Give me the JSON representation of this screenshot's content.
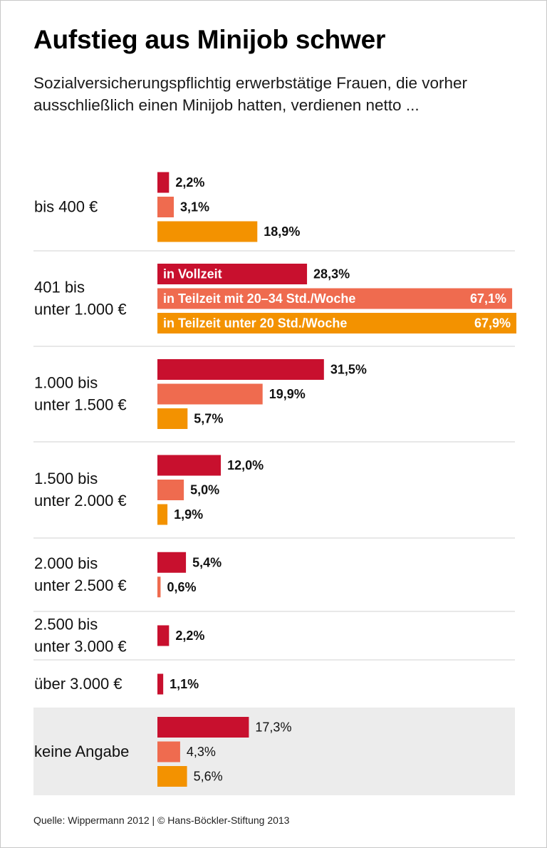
{
  "title": "Aufstieg aus Minijob schwer",
  "subtitle": "Sozialversicherungspflichtig erwerbstätige Frauen, die vorher ausschließlich einen Minijob hatten, verdienen netto ...",
  "source": "Quelle: Wippermann 2012 | © Hans-Böckler-Stiftung 2013",
  "colors": {
    "vollzeit": "#c8102e",
    "teilzeit_20_34": "#ef6b4f",
    "teilzeit_unter_20": "#f39200",
    "shade": "#ececec",
    "divider": "#d2d2d2"
  },
  "chart_data": {
    "type": "bar",
    "orientation": "horizontal",
    "title": "Aufstieg aus Minijob schwer",
    "xlim": [
      0,
      67.9
    ],
    "legend_placement": "inside-bars (category 401 bis unter 1.000 €)",
    "series": [
      {
        "name": "in Vollzeit",
        "color": "#c8102e"
      },
      {
        "name": "in Teilzeit mit 20–34 Std./Woche",
        "color": "#ef6b4f"
      },
      {
        "name": "in Teilzeit unter 20 Std./Woche",
        "color": "#f39200"
      }
    ],
    "categories": [
      {
        "label": [
          "bis 400 €"
        ],
        "bars": [
          {
            "series": 0,
            "value": 2.2,
            "label": "2,2%"
          },
          {
            "series": 1,
            "value": 3.1,
            "label": "3,1%"
          },
          {
            "series": 2,
            "value": 18.9,
            "label": "18,9%"
          }
        ]
      },
      {
        "label": [
          "401 bis",
          "unter 1.000 €"
        ],
        "legend": true,
        "bars": [
          {
            "series": 0,
            "value": 28.3,
            "label": "28,3%"
          },
          {
            "series": 1,
            "value": 67.1,
            "label": "67,1%"
          },
          {
            "series": 2,
            "value": 67.9,
            "label": "67,9%"
          }
        ]
      },
      {
        "label": [
          "1.000 bis",
          "unter 1.500 €"
        ],
        "bars": [
          {
            "series": 0,
            "value": 31.5,
            "label": "31,5%"
          },
          {
            "series": 1,
            "value": 19.9,
            "label": "19,9%"
          },
          {
            "series": 2,
            "value": 5.7,
            "label": "5,7%"
          }
        ]
      },
      {
        "label": [
          "1.500 bis",
          "unter 2.000 €"
        ],
        "bars": [
          {
            "series": 0,
            "value": 12.0,
            "label": "12,0%"
          },
          {
            "series": 1,
            "value": 5.0,
            "label": "5,0%"
          },
          {
            "series": 2,
            "value": 1.9,
            "label": "1,9%"
          }
        ]
      },
      {
        "label": [
          "2.000 bis",
          "unter 2.500 €"
        ],
        "bars": [
          {
            "series": 0,
            "value": 5.4,
            "label": "5,4%"
          },
          {
            "series": 1,
            "value": 0.6,
            "label": "0,6%"
          }
        ]
      },
      {
        "label": [
          "2.500 bis",
          "unter 3.000 €"
        ],
        "bars": [
          {
            "series": 0,
            "value": 2.2,
            "label": "2,2%"
          }
        ]
      },
      {
        "label": [
          "über 3.000 €"
        ],
        "bars": [
          {
            "series": 0,
            "value": 1.1,
            "label": "1,1%"
          }
        ]
      },
      {
        "label": [
          "keine Angabe"
        ],
        "shaded": true,
        "lightLabels": true,
        "bars": [
          {
            "series": 0,
            "value": 17.3,
            "label": "17,3%"
          },
          {
            "series": 1,
            "value": 4.3,
            "label": "4,3%"
          },
          {
            "series": 2,
            "value": 5.6,
            "label": "5,6%"
          }
        ]
      }
    ]
  }
}
